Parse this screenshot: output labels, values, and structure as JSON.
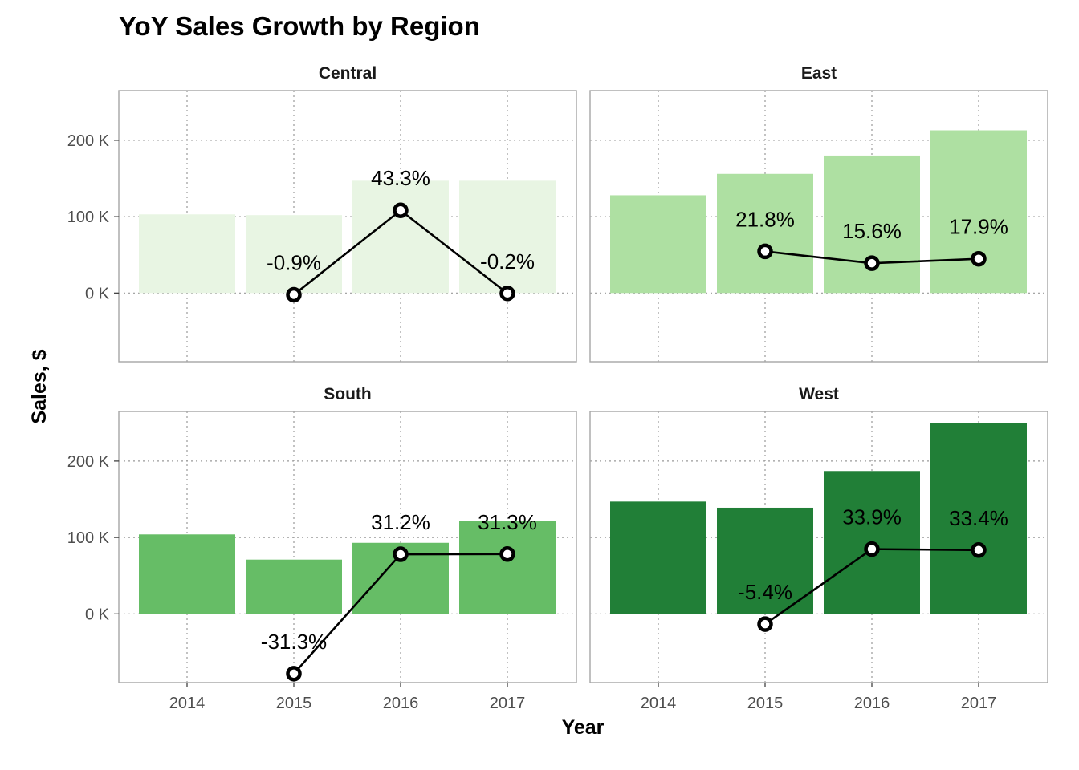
{
  "chart_data": {
    "type": "bar",
    "title": "YoY Sales Growth by Region",
    "xlabel": "Year",
    "ylabel": "Sales, $",
    "categories": [
      "2014",
      "2015",
      "2016",
      "2017"
    ],
    "ylim": [
      -90000,
      265000
    ],
    "yticks": [
      0,
      100000,
      200000
    ],
    "ytick_labels": [
      "0 K",
      "100 K",
      "200 K"
    ],
    "grid": true,
    "overlay": "line with point markers showing YoY growth percent",
    "panels": [
      {
        "name": "Central",
        "bar_color": "#e8f5e3",
        "sales": [
          103000,
          102000,
          147000,
          147000
        ],
        "growth_percent": [
          null,
          -0.9,
          43.3,
          -0.2
        ],
        "growth_labels": [
          "",
          "-0.9%",
          "43.3%",
          "-0.2%"
        ]
      },
      {
        "name": "East",
        "bar_color": "#aee0a2",
        "sales": [
          128000,
          156000,
          180000,
          213000
        ],
        "growth_percent": [
          null,
          21.8,
          15.6,
          17.9
        ],
        "growth_labels": [
          "",
          "21.8%",
          "15.6%",
          "17.9%"
        ]
      },
      {
        "name": "South",
        "bar_color": "#66bd66",
        "sales": [
          104000,
          71000,
          93000,
          122000
        ],
        "growth_percent": [
          null,
          -31.3,
          31.2,
          31.3
        ],
        "growth_labels": [
          "",
          "-31.3%",
          "31.2%",
          "31.3%"
        ]
      },
      {
        "name": "West",
        "bar_color": "#217f37",
        "sales": [
          147000,
          139000,
          187000,
          250000
        ],
        "growth_percent": [
          null,
          -5.4,
          33.9,
          33.4
        ],
        "growth_labels": [
          "",
          "-5.4%",
          "33.9%",
          "33.4%"
        ]
      }
    ]
  }
}
